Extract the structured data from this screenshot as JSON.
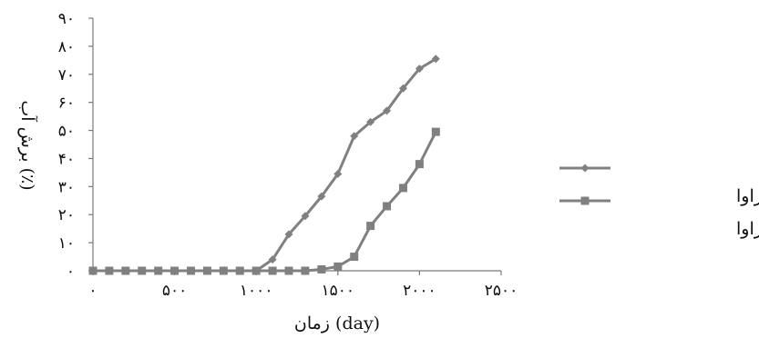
{
  "chart_data": {
    "type": "line",
    "xlabel": "زمان (day)",
    "ylabel": "برش آب (٪)",
    "xlim": [
      0,
      2500
    ],
    "ylim": [
      0,
      90
    ],
    "x_ticks": [
      0,
      500,
      1000,
      1500,
      2000,
      2500
    ],
    "x_tick_labels": [
      "۰",
      "۵۰۰",
      "۱۰۰۰",
      "۱۵۰۰",
      "۲۰۰۰",
      "۲۵۰۰"
    ],
    "y_ticks": [
      0,
      10,
      20,
      30,
      40,
      50,
      60,
      70,
      80,
      90
    ],
    "y_tick_labels": [
      "۰",
      "۱۰",
      "۲۰",
      "۳۰",
      "۴۰",
      "۵۰",
      "۶۰",
      "۷۰",
      "۸۰",
      "۹۰"
    ],
    "grid": false,
    "legend_position": "right",
    "series": [
      {
        "name": "بدون لایه ناتراوا",
        "marker": "diamond",
        "color": "#808080",
        "x": [
          0,
          100,
          200,
          300,
          400,
          500,
          600,
          700,
          800,
          900,
          1000,
          1100,
          1200,
          1300,
          1400,
          1500,
          1600,
          1700,
          1800,
          1900,
          2000,
          2100
        ],
        "y": [
          0,
          0,
          0,
          0,
          0,
          0,
          0,
          0,
          0,
          0,
          0,
          4,
          13,
          19.5,
          26.5,
          34.5,
          48,
          53,
          57,
          65,
          72,
          75.5
        ]
      },
      {
        "name": "با لایه ناتراوا",
        "marker": "square",
        "color": "#808080",
        "x": [
          0,
          100,
          200,
          300,
          400,
          500,
          600,
          700,
          800,
          900,
          1000,
          1100,
          1200,
          1300,
          1400,
          1500,
          1600,
          1700,
          1800,
          1900,
          2000,
          2100
        ],
        "y": [
          0,
          0,
          0,
          0,
          0,
          0,
          0,
          0,
          0,
          0,
          0,
          0,
          0,
          0,
          0.5,
          1.5,
          5,
          16,
          23,
          29.5,
          38,
          49.5
        ]
      }
    ]
  }
}
